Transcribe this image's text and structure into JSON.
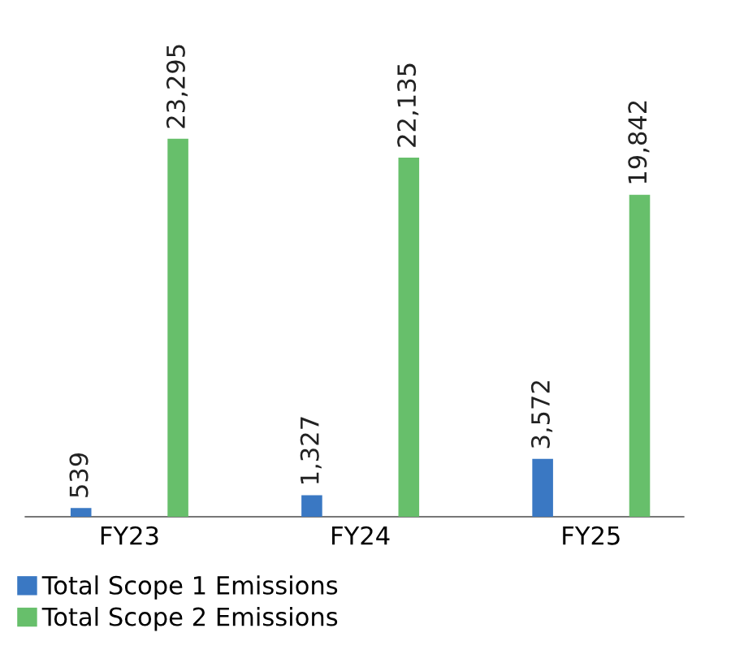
{
  "chart_data": {
    "type": "bar",
    "categories": [
      "FY23",
      "FY24",
      "FY25"
    ],
    "series": [
      {
        "name": "Total Scope 1 Emissions",
        "color": "#3a78c3",
        "values": [
          539,
          1327,
          3572
        ],
        "value_labels": [
          "539",
          "1,327",
          "3,572"
        ]
      },
      {
        "name": "Total Scope 2 Emissions",
        "color": "#67bf6b",
        "values": [
          23295,
          22135,
          19842
        ],
        "value_labels": [
          "23,295",
          "22,135",
          "19,842"
        ]
      }
    ],
    "legend": "bottom left",
    "grid": false
  }
}
